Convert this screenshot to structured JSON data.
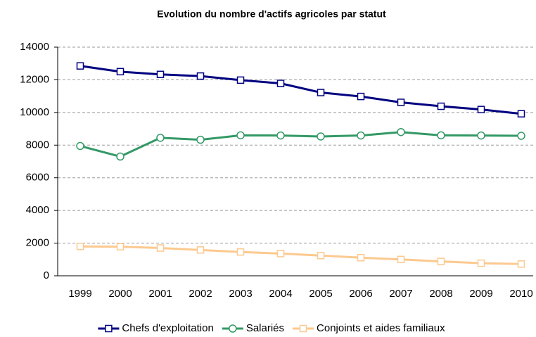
{
  "chart_data": {
    "type": "line",
    "title": "Evolution du nombre d'actifs agricoles par statut",
    "categories": [
      "1999",
      "2000",
      "2001",
      "2002",
      "2003",
      "2004",
      "2005",
      "2006",
      "2007",
      "2008",
      "2009",
      "2010"
    ],
    "series": [
      {
        "name": "Chefs d'exploitation",
        "color": "#000080",
        "marker": "square",
        "values": [
          12850,
          12500,
          12330,
          12230,
          11980,
          11780,
          11220,
          10980,
          10620,
          10380,
          10180,
          9920
        ]
      },
      {
        "name": "Salariés",
        "color": "#339966",
        "marker": "circle",
        "values": [
          7950,
          7300,
          8450,
          8330,
          8600,
          8590,
          8530,
          8590,
          8800,
          8600,
          8590,
          8570
        ]
      },
      {
        "name": "Conjoints et aides familiaux",
        "color": "#fcc98f",
        "marker": "square",
        "values": [
          1800,
          1780,
          1700,
          1580,
          1460,
          1360,
          1240,
          1110,
          1000,
          880,
          770,
          720
        ]
      }
    ],
    "ylim": [
      0,
      14000
    ],
    "yticks": [
      0,
      2000,
      4000,
      6000,
      8000,
      10000,
      12000,
      14000
    ],
    "grid": true,
    "legend": "bottom"
  }
}
